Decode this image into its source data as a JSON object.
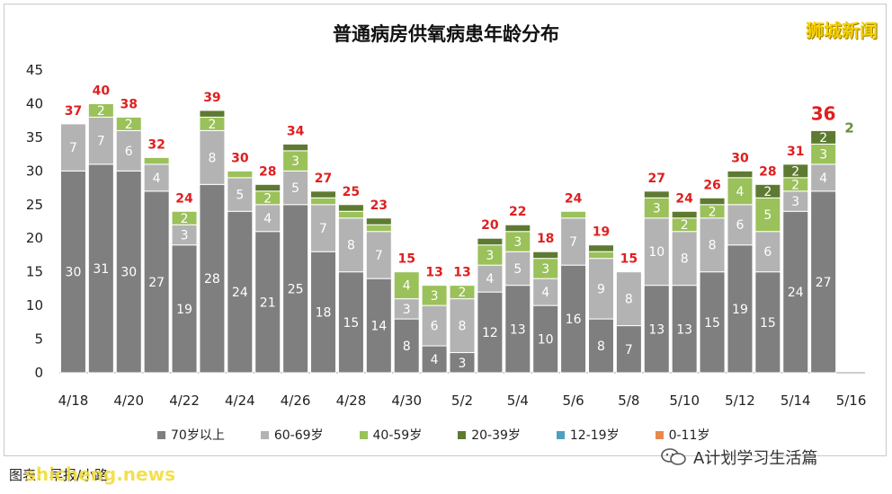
{
  "title": "普通病房供氧病患年龄分布",
  "brand": "狮城新闻",
  "source": "图表：早报/小路",
  "watermark": "shicheng.news",
  "wechat": "A计划学习生活篇",
  "colors": {
    "70+": "#7f7f7f",
    "60-69": "#b3b3b3",
    "40-59": "#9bc15a",
    "20-39": "#5e7a32",
    "12-19": "#4f9fbf",
    "0-11": "#e8894a",
    "total_label": "#e01f1f",
    "last_label_extra": "#6e8b3d"
  },
  "chart_data": {
    "type": "bar",
    "stacked": true,
    "title": "普通病房供氧病患年龄分布",
    "ylim": [
      0,
      45
    ],
    "yticks": [
      0,
      5,
      10,
      15,
      20,
      25,
      30,
      35,
      40,
      45
    ],
    "grid": false,
    "legend_position": "bottom",
    "categories": [
      "4/18",
      "4/19",
      "4/20",
      "4/21",
      "4/22",
      "4/23",
      "4/24",
      "4/25",
      "4/26",
      "4/27",
      "4/28",
      "4/29",
      "4/30",
      "5/1",
      "5/2",
      "5/3",
      "5/4",
      "5/5",
      "5/6",
      "5/7",
      "5/8",
      "5/9",
      "5/10",
      "5/11",
      "5/12",
      "5/13",
      "5/14",
      "5/15",
      "5/16"
    ],
    "x_tick_labels": [
      "4/18",
      "4/20",
      "4/22",
      "4/24",
      "4/26",
      "4/28",
      "4/30",
      "5/2",
      "5/4",
      "5/6",
      "5/8",
      "5/10",
      "5/12",
      "5/14",
      "5/16"
    ],
    "series": [
      {
        "name": "70岁以上",
        "values": [
          30,
          31,
          30,
          27,
          19,
          28,
          24,
          21,
          25,
          18,
          15,
          14,
          8,
          4,
          3,
          12,
          13,
          10,
          16,
          8,
          7,
          13,
          13,
          15,
          19,
          15,
          24,
          27,
          0
        ]
      },
      {
        "name": "60-69岁",
        "values": [
          7,
          7,
          6,
          4,
          3,
          8,
          5,
          4,
          5,
          7,
          8,
          7,
          3,
          6,
          8,
          4,
          5,
          4,
          7,
          9,
          8,
          10,
          8,
          8,
          6,
          6,
          3,
          4,
          0
        ]
      },
      {
        "name": "40-59岁",
        "values": [
          0,
          2,
          2,
          1,
          2,
          2,
          1,
          2,
          3,
          1,
          1,
          1,
          4,
          3,
          2,
          3,
          3,
          3,
          1,
          1,
          0,
          3,
          2,
          2,
          4,
          5,
          2,
          3,
          0
        ]
      },
      {
        "name": "20-39岁",
        "values": [
          0,
          0,
          0,
          0,
          0,
          1,
          0,
          1,
          1,
          1,
          1,
          1,
          0,
          0,
          0,
          1,
          1,
          1,
          0,
          1,
          0,
          1,
          1,
          1,
          1,
          2,
          2,
          2,
          0
        ]
      },
      {
        "name": "12-19岁",
        "values": [
          0,
          0,
          0,
          0,
          0,
          0,
          0,
          0,
          0,
          0,
          0,
          0,
          0,
          0,
          0,
          0,
          0,
          0,
          0,
          0,
          0,
          0,
          0,
          0,
          0,
          0,
          0,
          0,
          0
        ]
      },
      {
        "name": "0-11岁",
        "values": [
          0,
          0,
          0,
          0,
          0,
          0,
          0,
          0,
          0,
          0,
          0,
          0,
          0,
          0,
          0,
          0,
          0,
          0,
          0,
          0,
          0,
          0,
          0,
          0,
          0,
          0,
          0,
          0,
          0
        ]
      }
    ],
    "totals": [
      "37",
      "40",
      "38",
      "32",
      "24",
      "39",
      "30",
      "28",
      "34",
      "27",
      "25",
      "23",
      "15",
      "13",
      "13",
      "20",
      "22",
      "18",
      "24",
      "19",
      "15",
      "27",
      "24",
      "26",
      "30",
      "28",
      "31",
      "36",
      ""
    ],
    "segment_labels": [
      [
        "30",
        "7",
        "",
        ""
      ],
      [
        "31",
        "7",
        "2",
        ""
      ],
      [
        "30",
        "6",
        "2",
        ""
      ],
      [
        "27",
        "4",
        "",
        ""
      ],
      [
        "19",
        "3",
        "2",
        ""
      ],
      [
        "28",
        "8",
        "2",
        ""
      ],
      [
        "24",
        "5",
        "",
        ""
      ],
      [
        "21",
        "4",
        "2",
        ""
      ],
      [
        "25",
        "5",
        "3",
        ""
      ],
      [
        "18",
        "7",
        "",
        ""
      ],
      [
        "15",
        "8",
        "",
        ""
      ],
      [
        "14",
        "7",
        "",
        ""
      ],
      [
        "8",
        "3",
        "4",
        ""
      ],
      [
        "4",
        "6",
        "3",
        ""
      ],
      [
        "3",
        "8",
        "2",
        ""
      ],
      [
        "12",
        "4",
        "3",
        ""
      ],
      [
        "13",
        "5",
        "3",
        ""
      ],
      [
        "10",
        "4",
        "3",
        ""
      ],
      [
        "16",
        "7",
        "",
        ""
      ],
      [
        "8",
        "9",
        "",
        ""
      ],
      [
        "7",
        "8",
        "",
        ""
      ],
      [
        "13",
        "10",
        "3",
        ""
      ],
      [
        "13",
        "8",
        "2",
        ""
      ],
      [
        "15",
        "8",
        "2",
        ""
      ],
      [
        "19",
        "6",
        "4",
        ""
      ],
      [
        "15",
        "6",
        "5",
        "2"
      ],
      [
        "24",
        "3",
        "2",
        "2"
      ],
      [
        "27",
        "4",
        "3",
        "2"
      ],
      [
        "",
        "",
        "",
        ""
      ]
    ],
    "last_bar_extra_label": "2"
  }
}
